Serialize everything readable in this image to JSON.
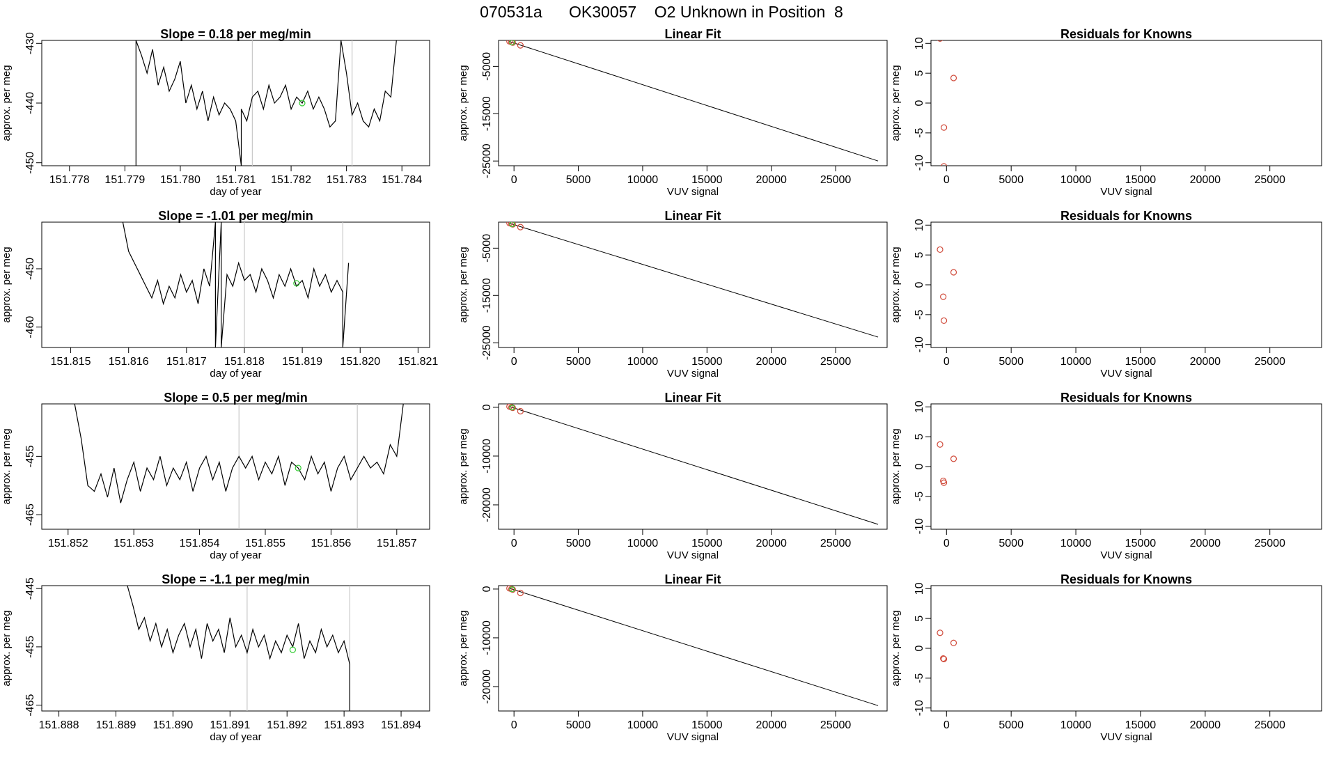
{
  "figure": {
    "title": "070531a      OK30057    O2 Unknown in Position  8",
    "colors": {
      "line": "#000000",
      "fit_point": "#d04a3a",
      "marker": "#33cc33",
      "vline": "#c8c8c8"
    }
  },
  "chart_data": [
    {
      "type": "line",
      "row": 1,
      "col": 1,
      "title": "Slope =  0.18  per meg/min",
      "xlabel": "day of year",
      "ylabel": "approx. per meg",
      "xlim": [
        151.7775,
        151.7845
      ],
      "ylim": [
        -450.5,
        -429.5
      ],
      "xticks": [
        151.778,
        151.779,
        151.78,
        151.781,
        151.782,
        151.783,
        151.784
      ],
      "xtick_labels": [
        "151.778",
        "151.779",
        "151.780",
        "151.781",
        "151.782",
        "151.783",
        "151.784"
      ],
      "yticks": [
        -450,
        -440,
        -430
      ],
      "ytick_labels": [
        "-450",
        "-440",
        "-430"
      ],
      "vlines": [
        151.7813,
        151.7831
      ],
      "marker": [
        151.7822,
        -440
      ],
      "x": [
        151.7792,
        151.7792,
        151.7793,
        151.7794,
        151.7795,
        151.7796,
        151.7797,
        151.7798,
        151.7799,
        151.78,
        151.7801,
        151.7802,
        151.7803,
        151.7804,
        151.7805,
        151.7806,
        151.7807,
        151.7808,
        151.7809,
        151.781,
        151.7811,
        151.7811,
        151.7812,
        151.7813,
        151.7814,
        151.7815,
        151.7816,
        151.7817,
        151.7818,
        151.7819,
        151.782,
        151.7821,
        151.7822,
        151.7823,
        151.7824,
        151.7825,
        151.7826,
        151.7827,
        151.7828,
        151.7829,
        151.783,
        151.7831,
        151.7832,
        151.7833,
        151.7834,
        151.7835,
        151.7836,
        151.7837,
        151.7838,
        151.7839
      ],
      "y": [
        -450.5,
        -429.5,
        -432,
        -435,
        -431,
        -437,
        -434,
        -438,
        -436,
        -433,
        -440,
        -437,
        -441,
        -438,
        -443,
        -439,
        -442,
        -440,
        -441,
        -443,
        -450.5,
        -441,
        -443,
        -439,
        -438,
        -441,
        -437,
        -440,
        -439,
        -437,
        -441,
        -439,
        -440,
        -438,
        -441,
        -439,
        -441,
        -444,
        -443,
        -429.5,
        -435,
        -442,
        -440,
        -443,
        -444,
        -441,
        -443,
        -438,
        -439,
        -429.5
      ]
    },
    {
      "type": "scatter_with_line",
      "row": 1,
      "col": 2,
      "title": "Linear Fit",
      "xlabel": "VUV signal",
      "ylabel": "approx. per meg",
      "xlim": [
        -1200,
        29000
      ],
      "ylim": [
        -26000,
        500
      ],
      "xticks": [
        0,
        5000,
        10000,
        15000,
        20000,
        25000
      ],
      "xtick_labels": [
        "0",
        "5000",
        "10000",
        "15000",
        "20000",
        "25000"
      ],
      "yticks": [
        -25000,
        -15000,
        -5000
      ],
      "ytick_labels": [
        "-25000",
        "-15000",
        "-5000"
      ],
      "points_x": [
        -350,
        -200,
        -100,
        500
      ],
      "points_y": [
        300,
        150,
        30,
        -550
      ],
      "marker": [
        -150,
        50
      ],
      "fit_line": {
        "x": [
          -400,
          28300
        ],
        "y": [
          300,
          -25000
        ]
      }
    },
    {
      "type": "scatter",
      "row": 1,
      "col": 3,
      "title": "Residuals for Knowns",
      "xlabel": "VUV signal",
      "ylabel": "approx. per meg",
      "xlim": [
        -1200,
        29000
      ],
      "ylim": [
        -10.5,
        10.5
      ],
      "xticks": [
        0,
        5000,
        10000,
        15000,
        20000,
        25000
      ],
      "xtick_labels": [
        "0",
        "5000",
        "10000",
        "15000",
        "20000",
        "25000"
      ],
      "yticks": [
        -10,
        -5,
        0,
        5,
        10
      ],
      "ytick_labels": [
        "-10",
        "-5",
        "0",
        "5",
        "10"
      ],
      "points_x": [
        -500,
        -200,
        -200,
        550
      ],
      "points_y": [
        10.8,
        -4.1,
        -10.6,
        4.2
      ]
    },
    {
      "type": "line",
      "row": 2,
      "col": 1,
      "title": "Slope =  -1.01  per meg/min",
      "xlabel": "day of year",
      "ylabel": "approx. per meg",
      "xlim": [
        151.8145,
        151.8212
      ],
      "ylim": [
        -463.5,
        -442
      ],
      "xticks": [
        151.815,
        151.816,
        151.817,
        151.818,
        151.819,
        151.82,
        151.821
      ],
      "xtick_labels": [
        "151.815",
        "151.816",
        "151.817",
        "151.818",
        "151.819",
        "151.820",
        "151.821"
      ],
      "yticks": [
        -460,
        -450
      ],
      "ytick_labels": [
        "-460",
        "-450"
      ],
      "vlines": [
        151.818,
        151.8197
      ],
      "marker": [
        151.8189,
        -452.5
      ],
      "x": [
        151.8159,
        151.816,
        151.8161,
        151.8162,
        151.8163,
        151.8164,
        151.8165,
        151.8166,
        151.8167,
        151.8168,
        151.8169,
        151.817,
        151.8171,
        151.8172,
        151.8173,
        151.8174,
        151.8175,
        151.8175,
        151.8176,
        151.8176,
        151.8177,
        151.8178,
        151.8179,
        151.818,
        151.8181,
        151.8182,
        151.8183,
        151.8184,
        151.8185,
        151.8186,
        151.8187,
        151.8188,
        151.8189,
        151.819,
        151.8191,
        151.8192,
        151.8193,
        151.8194,
        151.8195,
        151.8196,
        151.8197,
        151.8197,
        151.8198
      ],
      "y": [
        -442,
        -447,
        -449,
        -451,
        -453,
        -455,
        -452,
        -456,
        -453,
        -455,
        -451,
        -454,
        -452,
        -456,
        -450,
        -453,
        -442,
        -463.5,
        -442,
        -463.5,
        -451,
        -453,
        -449,
        -452,
        -451,
        -454,
        -450,
        -452,
        -455,
        -451,
        -453,
        -450,
        -453,
        -452,
        -455,
        -450,
        -453,
        -451,
        -454,
        -452,
        -454,
        -463.5,
        -449
      ]
    },
    {
      "type": "scatter_with_line",
      "row": 2,
      "col": 2,
      "title": "Linear Fit",
      "xlabel": "VUV signal",
      "ylabel": "approx. per meg",
      "xlim": [
        -1200,
        29000
      ],
      "ylim": [
        -26000,
        500
      ],
      "xticks": [
        0,
        5000,
        10000,
        15000,
        20000,
        25000
      ],
      "xtick_labels": [
        "0",
        "5000",
        "10000",
        "15000",
        "20000",
        "25000"
      ],
      "yticks": [
        -25000,
        -15000,
        -5000
      ],
      "ytick_labels": [
        "-25000",
        "-15000",
        "-5000"
      ],
      "points_x": [
        -350,
        -200,
        -100,
        500
      ],
      "points_y": [
        300,
        150,
        30,
        -550
      ],
      "marker": [
        -150,
        50
      ],
      "fit_line": {
        "x": [
          -400,
          28300
        ],
        "y": [
          300,
          -23800
        ]
      }
    },
    {
      "type": "scatter",
      "row": 2,
      "col": 3,
      "title": "Residuals for Knowns",
      "xlabel": "VUV signal",
      "ylabel": "approx. per meg",
      "xlim": [
        -1200,
        29000
      ],
      "ylim": [
        -10.5,
        10.5
      ],
      "xticks": [
        0,
        5000,
        10000,
        15000,
        20000,
        25000
      ],
      "xtick_labels": [
        "0",
        "5000",
        "10000",
        "15000",
        "20000",
        "25000"
      ],
      "yticks": [
        -10,
        -5,
        0,
        5,
        10
      ],
      "ytick_labels": [
        "-10",
        "-5",
        "0",
        "5",
        "10"
      ],
      "points_x": [
        -500,
        -250,
        -200,
        550
      ],
      "points_y": [
        5.9,
        -2.0,
        -6.0,
        2.1
      ]
    },
    {
      "type": "line",
      "row": 3,
      "col": 1,
      "title": "Slope =  0.5  per meg/min",
      "xlabel": "day of year",
      "ylabel": "approx. per meg",
      "xlim": [
        151.8516,
        151.8575
      ],
      "ylim": [
        -467.5,
        -446
      ],
      "xticks": [
        151.852,
        151.853,
        151.854,
        151.855,
        151.856,
        151.857
      ],
      "xtick_labels": [
        "151.852",
        "151.853",
        "151.854",
        "151.855",
        "151.856",
        "151.857"
      ],
      "yticks": [
        -465,
        -455
      ],
      "ytick_labels": [
        "-465",
        "-455"
      ],
      "vlines": [
        151.8546,
        151.8564
      ],
      "marker": [
        151.8555,
        -457
      ],
      "x": [
        151.8521,
        151.8522,
        151.8523,
        151.8524,
        151.8525,
        151.8526,
        151.8527,
        151.8528,
        151.8529,
        151.853,
        151.8531,
        151.8532,
        151.8533,
        151.8534,
        151.8535,
        151.8536,
        151.8537,
        151.8538,
        151.8539,
        151.854,
        151.8541,
        151.8542,
        151.8543,
        151.8544,
        151.8545,
        151.8546,
        151.8547,
        151.8548,
        151.8549,
        151.855,
        151.8551,
        151.8552,
        151.8553,
        151.8554,
        151.8555,
        151.8556,
        151.8557,
        151.8558,
        151.8559,
        151.856,
        151.8561,
        151.8562,
        151.8563,
        151.8564,
        151.8565,
        151.8566,
        151.8567,
        151.8568,
        151.8569,
        151.857,
        151.8571
      ],
      "y": [
        -446,
        -452,
        -460,
        -461,
        -458,
        -462,
        -457,
        -463,
        -459,
        -456,
        -461,
        -457,
        -459,
        -455,
        -460,
        -457,
        -459,
        -456,
        -461,
        -457,
        -455,
        -459,
        -456,
        -461,
        -457,
        -455,
        -457,
        -455,
        -459,
        -456,
        -458,
        -455,
        -460,
        -456,
        -457,
        -459,
        -455,
        -458,
        -456,
        -461,
        -457,
        -455,
        -459,
        -457,
        -455,
        -457,
        -456,
        -458,
        -453,
        -455,
        -446
      ]
    },
    {
      "type": "scatter_with_line",
      "row": 3,
      "col": 2,
      "title": "Linear Fit",
      "xlabel": "VUV signal",
      "ylabel": "approx. per meg",
      "xlim": [
        -1200,
        29000
      ],
      "ylim": [
        -25000,
        700
      ],
      "xticks": [
        0,
        5000,
        10000,
        15000,
        20000,
        25000
      ],
      "xtick_labels": [
        "0",
        "5000",
        "10000",
        "15000",
        "20000",
        "25000"
      ],
      "yticks": [
        -20000,
        -10000,
        0
      ],
      "ytick_labels": [
        "-20000",
        "-10000",
        "0"
      ],
      "points_x": [
        -350,
        -200,
        -100,
        500
      ],
      "points_y": [
        150,
        0,
        -100,
        -800
      ],
      "marker": [
        -150,
        -50
      ],
      "fit_line": {
        "x": [
          -400,
          28300
        ],
        "y": [
          200,
          -24000
        ]
      }
    },
    {
      "type": "scatter",
      "row": 3,
      "col": 3,
      "title": "Residuals for Knowns",
      "xlabel": "VUV signal",
      "ylabel": "approx. per meg",
      "xlim": [
        -1200,
        29000
      ],
      "ylim": [
        -10.5,
        10.5
      ],
      "xticks": [
        0,
        5000,
        10000,
        15000,
        20000,
        25000
      ],
      "xtick_labels": [
        "0",
        "5000",
        "10000",
        "15000",
        "20000",
        "25000"
      ],
      "yticks": [
        -10,
        -5,
        0,
        5,
        10
      ],
      "ytick_labels": [
        "-10",
        "-5",
        "0",
        "5",
        "10"
      ],
      "points_x": [
        -500,
        -250,
        -200,
        550
      ],
      "points_y": [
        3.7,
        -2.4,
        -2.7,
        1.3
      ]
    },
    {
      "type": "line",
      "row": 4,
      "col": 1,
      "title": "Slope =  -1.1  per meg/min",
      "xlabel": "day of year",
      "ylabel": "approx. per meg",
      "xlim": [
        151.8877,
        151.8945
      ],
      "ylim": [
        -466,
        -444.5
      ],
      "xticks": [
        151.888,
        151.889,
        151.89,
        151.891,
        151.892,
        151.893,
        151.894
      ],
      "xtick_labels": [
        "151.888",
        "151.889",
        "151.890",
        "151.891",
        "151.892",
        "151.893",
        "151.894"
      ],
      "yticks": [
        -465,
        -455,
        -445
      ],
      "ytick_labels": [
        "-465",
        "-455",
        "-445"
      ],
      "vlines": [
        151.8913,
        151.8931
      ],
      "marker": [
        151.8921,
        -455.5
      ],
      "x": [
        151.8892,
        151.8893,
        151.8894,
        151.8895,
        151.8896,
        151.8897,
        151.8898,
        151.8899,
        151.89,
        151.8901,
        151.8902,
        151.8903,
        151.8904,
        151.8905,
        151.8906,
        151.8907,
        151.8908,
        151.8909,
        151.891,
        151.8911,
        151.8912,
        151.8913,
        151.8914,
        151.8915,
        151.8916,
        151.8917,
        151.8918,
        151.8919,
        151.892,
        151.8921,
        151.8922,
        151.8923,
        151.8924,
        151.8925,
        151.8926,
        151.8927,
        151.8928,
        151.8929,
        151.893,
        151.8931,
        151.8931
      ],
      "y": [
        -444.5,
        -448,
        -452,
        -450,
        -454,
        -451,
        -455,
        -452,
        -456,
        -453,
        -451,
        -455,
        -452,
        -457,
        -451,
        -454,
        -452,
        -456,
        -450,
        -455,
        -453,
        -456,
        -452,
        -455,
        -453,
        -457,
        -454,
        -456,
        -453,
        -455,
        -451,
        -457,
        -454,
        -456,
        -452,
        -455,
        -453,
        -456,
        -454,
        -458,
        -466
      ]
    },
    {
      "type": "scatter_with_line",
      "row": 4,
      "col": 2,
      "title": "Linear Fit",
      "xlabel": "VUV signal",
      "ylabel": "approx. per meg",
      "xlim": [
        -1200,
        29000
      ],
      "ylim": [
        -25000,
        700
      ],
      "xticks": [
        0,
        5000,
        10000,
        15000,
        20000,
        25000
      ],
      "xtick_labels": [
        "0",
        "5000",
        "10000",
        "15000",
        "20000",
        "25000"
      ],
      "yticks": [
        -20000,
        -10000,
        0
      ],
      "ytick_labels": [
        "-20000",
        "-10000",
        "0"
      ],
      "points_x": [
        -350,
        -200,
        -100,
        500
      ],
      "points_y": [
        150,
        0,
        -100,
        -800
      ],
      "marker": [
        -150,
        -50
      ],
      "fit_line": {
        "x": [
          -400,
          28300
        ],
        "y": [
          200,
          -23900
        ]
      }
    },
    {
      "type": "scatter",
      "row": 4,
      "col": 3,
      "title": "Residuals for Knowns",
      "xlabel": "VUV signal",
      "ylabel": "approx. per meg",
      "xlim": [
        -1200,
        29000
      ],
      "ylim": [
        -10.5,
        10.5
      ],
      "xticks": [
        0,
        5000,
        10000,
        15000,
        20000,
        25000
      ],
      "xtick_labels": [
        "0",
        "5000",
        "10000",
        "15000",
        "20000",
        "25000"
      ],
      "yticks": [
        -10,
        -5,
        0,
        5,
        10
      ],
      "ytick_labels": [
        "-10",
        "-5",
        "0",
        "5",
        "10"
      ],
      "points_x": [
        -500,
        -250,
        -200,
        550
      ],
      "points_y": [
        2.6,
        -1.7,
        -1.8,
        0.9
      ]
    }
  ]
}
